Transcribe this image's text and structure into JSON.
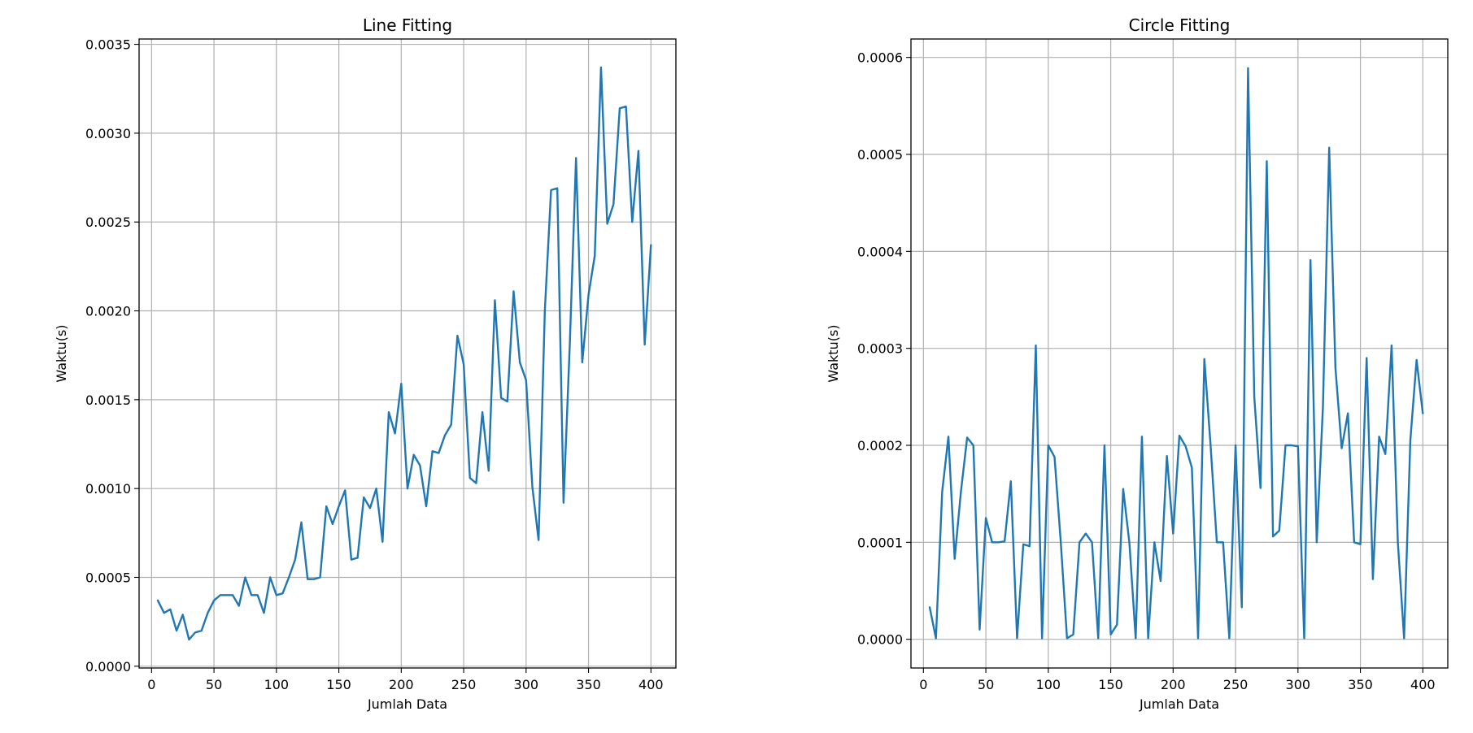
{
  "chart_data": [
    {
      "type": "line",
      "title": "Line Fitting",
      "xlabel": "Jumlah Data",
      "ylabel": "Waktu(s)",
      "xlim": [
        -10,
        420
      ],
      "ylim": [
        -1e-05,
        0.00353
      ],
      "xticks": [
        0,
        50,
        100,
        150,
        200,
        250,
        300,
        350,
        400
      ],
      "xtick_labels": [
        "0",
        "50",
        "100",
        "150",
        "200",
        "250",
        "300",
        "350",
        "400"
      ],
      "yticks": [
        0,
        0.0005,
        0.001,
        0.0015,
        0.002,
        0.0025,
        0.003,
        0.0035
      ],
      "ytick_labels": [
        "0.0000",
        "0.0005",
        "0.0010",
        "0.0015",
        "0.0020",
        "0.0025",
        "0.0030",
        "0.0035"
      ],
      "grid": true,
      "color": "#1f77b4",
      "series": [
        {
          "x": [
            5,
            10,
            15,
            20,
            25,
            30,
            35,
            40,
            45,
            50,
            55,
            60,
            65,
            70,
            75,
            80,
            85,
            90,
            95,
            100,
            105,
            110,
            115,
            120,
            125,
            130,
            135,
            140,
            145,
            150,
            155,
            160,
            165,
            170,
            175,
            180,
            185,
            190,
            195,
            200,
            205,
            210,
            215,
            220,
            225,
            230,
            235,
            240,
            245,
            250,
            255,
            260,
            265,
            270,
            275,
            280,
            285,
            290,
            295,
            300,
            305,
            310,
            315,
            320,
            325,
            330,
            335,
            340,
            345,
            350,
            355,
            360,
            365,
            370,
            375,
            380,
            385,
            390,
            395,
            400
          ],
          "y": [
            0.00037,
            0.0003,
            0.00032,
            0.0002,
            0.00029,
            0.00015,
            0.00019,
            0.0002,
            0.0003,
            0.00037,
            0.0004,
            0.0004,
            0.0004,
            0.00034,
            0.0005,
            0.0004,
            0.0004,
            0.0003,
            0.0005,
            0.0004,
            0.00041,
            0.0005,
            0.0006,
            0.00081,
            0.00049,
            0.00049,
            0.0005,
            0.0009,
            0.0008,
            0.0009,
            0.00099,
            0.0006,
            0.00061,
            0.00095,
            0.00089,
            0.001,
            0.0007,
            0.00143,
            0.00131,
            0.00159,
            0.001,
            0.00119,
            0.00113,
            0.0009,
            0.00121,
            0.0012,
            0.0013,
            0.00136,
            0.00186,
            0.0017,
            0.00106,
            0.00103,
            0.00143,
            0.0011,
            0.00206,
            0.00151,
            0.00149,
            0.00211,
            0.00171,
            0.00161,
            0.00101,
            0.00071,
            0.002,
            0.00268,
            0.00269,
            0.00092,
            0.00181,
            0.00286,
            0.00171,
            0.00209,
            0.00231,
            0.00337,
            0.00249,
            0.0026,
            0.00314,
            0.00315,
            0.0025,
            0.0029,
            0.00181,
            0.00237
          ]
        }
      ]
    },
    {
      "type": "line",
      "title": "Circle Fitting",
      "xlabel": "Jumlah Data",
      "ylabel": "Waktu(s)",
      "xlim": [
        -10,
        420
      ],
      "ylim": [
        -2.96e-05,
        0.000619
      ],
      "xticks": [
        0,
        50,
        100,
        150,
        200,
        250,
        300,
        350,
        400
      ],
      "xtick_labels": [
        "0",
        "50",
        "100",
        "150",
        "200",
        "250",
        "300",
        "350",
        "400"
      ],
      "yticks": [
        0,
        0.0001,
        0.0002,
        0.0003,
        0.0004,
        0.0005,
        0.0006
      ],
      "ytick_labels": [
        "0.0000",
        "0.0001",
        "0.0002",
        "0.0003",
        "0.0004",
        "0.0005",
        "0.0006"
      ],
      "grid": true,
      "color": "#1f77b4",
      "series": [
        {
          "x": [
            5,
            10,
            15,
            20,
            25,
            30,
            35,
            40,
            45,
            50,
            55,
            60,
            65,
            70,
            75,
            80,
            85,
            90,
            95,
            100,
            105,
            110,
            115,
            120,
            125,
            130,
            135,
            140,
            145,
            150,
            155,
            160,
            165,
            170,
            175,
            180,
            185,
            190,
            195,
            200,
            205,
            210,
            215,
            220,
            225,
            230,
            235,
            240,
            245,
            250,
            255,
            260,
            265,
            270,
            275,
            280,
            285,
            290,
            295,
            300,
            305,
            310,
            315,
            320,
            325,
            330,
            335,
            340,
            345,
            350,
            355,
            360,
            365,
            370,
            375,
            380,
            385,
            390,
            395,
            400
          ],
          "y": [
            3.3e-05,
            1e-06,
            0.000152,
            0.000209,
            8.3e-05,
            0.000152,
            0.000208,
            0.0002,
            1e-05,
            0.000125,
            0.0001,
            0.0001,
            0.000101,
            0.000163,
            1e-06,
            9.8e-05,
            9.6e-05,
            0.000303,
            1e-06,
            0.0002,
            0.000188,
            0.0001,
            1e-06,
            5e-06,
            0.0001,
            0.000109,
            0.0001,
            1e-06,
            0.0002,
            5e-06,
            1.5e-05,
            0.000155,
            9.9e-05,
            1e-06,
            0.000209,
            1e-06,
            0.0001,
            6e-05,
            0.000189,
            0.000109,
            0.00021,
            0.000199,
            0.000177,
            1e-06,
            0.000289,
            0.0002,
            0.0001,
            0.0001,
            1e-06,
            0.0002,
            3.3e-05,
            0.000589,
            0.00025,
            0.000156,
            0.000493,
            0.000106,
            0.000112,
            0.0002,
            0.0002,
            0.000199,
            1e-06,
            0.000391,
            0.0001,
            0.00024,
            0.000507,
            0.00028,
            0.000197,
            0.000233,
            0.0001,
            9.8e-05,
            0.00029,
            6.2e-05,
            0.000209,
            0.000191,
            0.000303,
            0.0001,
            1e-06,
            0.000205,
            0.000288,
            0.000233
          ]
        }
      ]
    }
  ]
}
